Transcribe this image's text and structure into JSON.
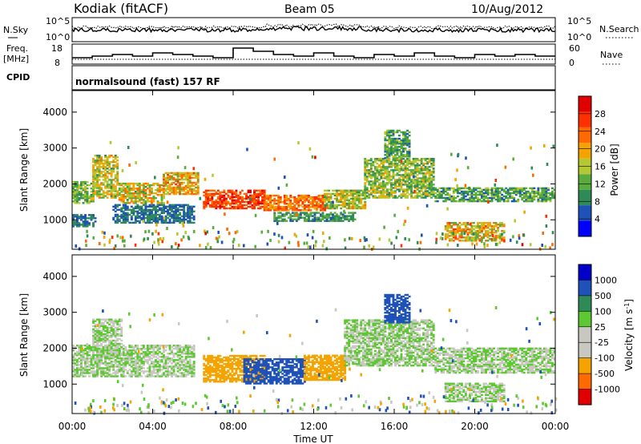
{
  "header": {
    "station": "Kodiak (fitACF)",
    "beam": "Beam 05",
    "date": "10/Aug/2012"
  },
  "noise_panel": {
    "left_label": "N.Sky",
    "right_label": "N.Search",
    "left_ticks": [
      "10^5",
      "10^0"
    ],
    "right_ticks": [
      "10^5",
      "10^0"
    ]
  },
  "freq_panel": {
    "left_label_line1": "Freq.",
    "left_label_line2": "[MHz]",
    "right_label": "Nave",
    "left_ticks": [
      "18",
      "8"
    ],
    "right_ticks": [
      "60",
      "0"
    ]
  },
  "cpid": {
    "label": "CPID",
    "value": "normalsound (fast) 157 RF"
  },
  "colors": {
    "power": [
      "#0000ff",
      "#1f52b8",
      "#2e8b57",
      "#5aab3c",
      "#b5c832",
      "#f4a300",
      "#ff6a00",
      "#ff3000",
      "#e00000"
    ],
    "velocity": [
      "#e00000",
      "#ff6a00",
      "#f4a300",
      "#c8c8c0",
      "#c8c8c0",
      "#5dc832",
      "#2e8b57",
      "#1f52b8",
      "#0000c8"
    ]
  },
  "chart_data": [
    {
      "type": "heatmap",
      "panel": "power",
      "ylabel": "Slant Range [km]",
      "ylim": [
        180,
        4600
      ],
      "yticks": [
        "1000",
        "2000",
        "3000",
        "4000"
      ],
      "colorbar_label": "Power [dB]",
      "colorbar_ticks": [
        "4",
        "8",
        "12",
        "16",
        "20",
        "24",
        "28"
      ],
      "colorbar_range": [
        0,
        32
      ],
      "echo_regions": [
        {
          "t0": 0.0,
          "t1": 1.0,
          "r0": 1450,
          "r1": 2050,
          "v0": 8,
          "v1": 18
        },
        {
          "t0": 0.0,
          "t1": 1.2,
          "r0": 800,
          "r1": 1150,
          "v0": 4,
          "v1": 10
        },
        {
          "t0": 1.0,
          "t1": 2.3,
          "r0": 1600,
          "r1": 2800,
          "v0": 10,
          "v1": 22
        },
        {
          "t0": 2.3,
          "t1": 4.5,
          "r0": 1450,
          "r1": 2000,
          "v0": 10,
          "v1": 24
        },
        {
          "t0": 4.5,
          "t1": 6.2,
          "r0": 1700,
          "r1": 2300,
          "v0": 12,
          "v1": 26
        },
        {
          "t0": 2.0,
          "t1": 6.0,
          "r0": 900,
          "r1": 1400,
          "v0": 4,
          "v1": 10
        },
        {
          "t0": 6.5,
          "t1": 9.5,
          "r0": 1300,
          "r1": 1800,
          "v0": 22,
          "v1": 30
        },
        {
          "t0": 9.5,
          "t1": 12.5,
          "r0": 1250,
          "r1": 1700,
          "v0": 18,
          "v1": 28
        },
        {
          "t0": 12.5,
          "t1": 14.5,
          "r0": 1300,
          "r1": 1800,
          "v0": 10,
          "v1": 22
        },
        {
          "t0": 10.0,
          "t1": 14.0,
          "r0": 950,
          "r1": 1200,
          "v0": 6,
          "v1": 14
        },
        {
          "t0": 14.5,
          "t1": 18.0,
          "r0": 1600,
          "r1": 2700,
          "v0": 8,
          "v1": 20
        },
        {
          "t0": 15.5,
          "t1": 16.8,
          "r0": 2700,
          "r1": 3500,
          "v0": 6,
          "v1": 16
        },
        {
          "t0": 18.0,
          "t1": 24.0,
          "r0": 1500,
          "r1": 1900,
          "v0": 6,
          "v1": 16
        },
        {
          "t0": 18.5,
          "t1": 21.5,
          "r0": 400,
          "r1": 900,
          "v0": 12,
          "v1": 26
        }
      ]
    },
    {
      "type": "heatmap",
      "panel": "velocity",
      "ylabel": "Slant Range [km]",
      "xlabel": "Time UT",
      "ylim": [
        180,
        4600
      ],
      "yticks": [
        "1000",
        "2000",
        "3000",
        "4000"
      ],
      "xticks": [
        "00:00",
        "04:00",
        "08:00",
        "12:00",
        "16:00",
        "20:00",
        "00:00"
      ],
      "xlim_hours": [
        0,
        24
      ],
      "colorbar_label": "Velocity [m s^-1]",
      "colorbar_ticks": [
        "-1000",
        "-500",
        "-100",
        "-25",
        "25",
        "100",
        "500",
        "1000"
      ],
      "echo_regions": [
        {
          "t0": 0.0,
          "t1": 6.0,
          "r0": 1200,
          "r1": 2100,
          "v0": -25,
          "v1": 25
        },
        {
          "t0": 1.0,
          "t1": 2.5,
          "r0": 1700,
          "r1": 2800,
          "v0": -25,
          "v1": 25
        },
        {
          "t0": 6.5,
          "t1": 9.5,
          "r0": 1050,
          "r1": 1800,
          "v0": -500,
          "v1": -100
        },
        {
          "t0": 8.5,
          "t1": 11.5,
          "r0": 1000,
          "r1": 1700,
          "v0": 100,
          "v1": 500
        },
        {
          "t0": 11.5,
          "t1": 13.5,
          "r0": 1100,
          "r1": 1800,
          "v0": -500,
          "v1": -100
        },
        {
          "t0": 13.5,
          "t1": 18.0,
          "r0": 1500,
          "r1": 2800,
          "v0": -25,
          "v1": 25
        },
        {
          "t0": 15.5,
          "t1": 16.8,
          "r0": 2700,
          "r1": 3500,
          "v0": 100,
          "v1": 500
        },
        {
          "t0": 18.0,
          "t1": 24.0,
          "r0": 1300,
          "r1": 2000,
          "v0": -25,
          "v1": 25
        },
        {
          "t0": 18.5,
          "t1": 21.5,
          "r0": 500,
          "r1": 1000,
          "v0": -25,
          "v1": 25
        }
      ]
    }
  ]
}
